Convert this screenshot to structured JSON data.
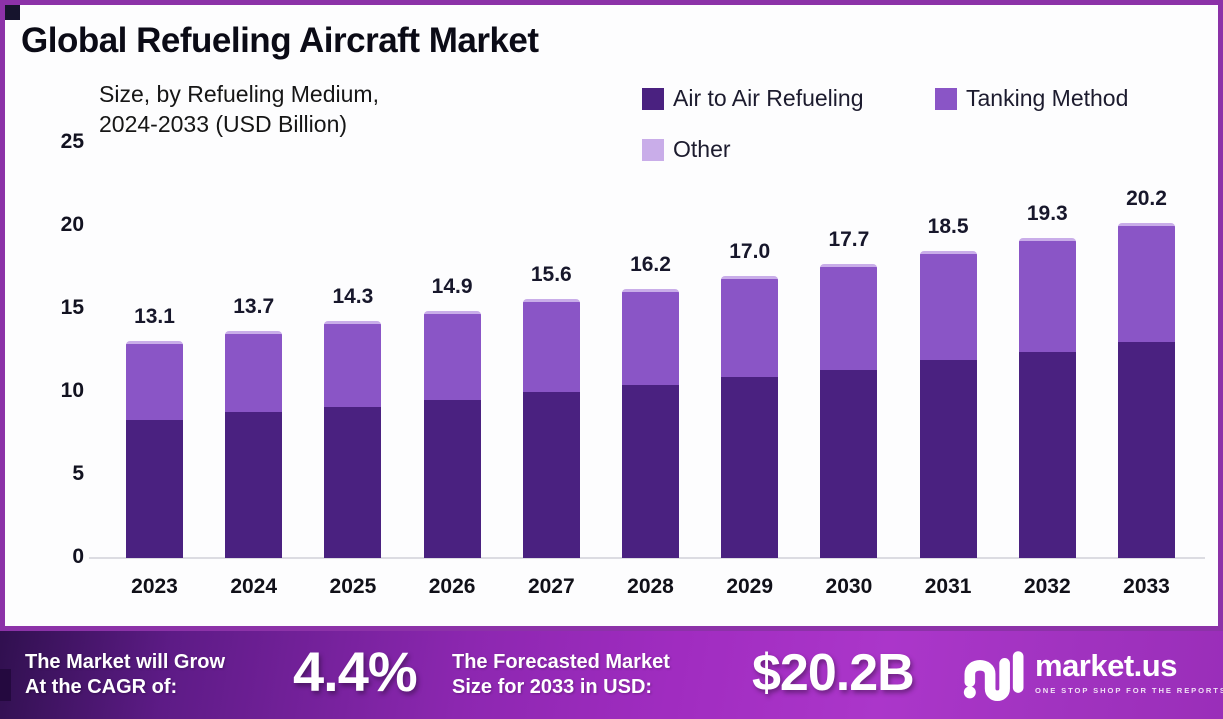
{
  "title": "Global Refueling Aircraft Market",
  "subtitle": {
    "line1": "Size, by Refueling Medium,",
    "line2": "2024-2033 (USD Billion)"
  },
  "chart_data": {
    "type": "bar",
    "stacked": true,
    "title": "Global Refueling Aircraft Market — Size, by Refueling Medium, 2024-2033 (USD Billion)",
    "categories": [
      "2023",
      "2024",
      "2025",
      "2026",
      "2027",
      "2028",
      "2029",
      "2030",
      "2031",
      "2032",
      "2033"
    ],
    "series": [
      {
        "name": "Air to Air Refueling",
        "color": "#4a2180",
        "values": [
          8.3,
          8.8,
          9.1,
          9.5,
          10.0,
          10.4,
          10.9,
          11.3,
          11.9,
          12.4,
          13.0
        ]
      },
      {
        "name": "Tanking Method",
        "color": "#8a55c6",
        "values": [
          4.6,
          4.7,
          5.0,
          5.2,
          5.4,
          5.6,
          5.9,
          6.2,
          6.4,
          6.7,
          7.0
        ]
      },
      {
        "name": "Other",
        "color": "#c9ade9",
        "values": [
          0.2,
          0.2,
          0.2,
          0.2,
          0.2,
          0.2,
          0.2,
          0.2,
          0.2,
          0.2,
          0.2
        ]
      }
    ],
    "totals": [
      13.1,
      13.7,
      14.3,
      14.9,
      15.6,
      16.2,
      17.0,
      17.7,
      18.5,
      19.3,
      20.2
    ],
    "total_labels": [
      "13.1",
      "13.7",
      "14.3",
      "14.9",
      "15.6",
      "16.2",
      "17.0",
      "17.7",
      "18.5",
      "19.3",
      "20.2"
    ],
    "xlabel": "",
    "ylabel": "USD Billion",
    "ylim": [
      0,
      25
    ],
    "y_ticks": [
      0,
      5,
      10,
      15,
      20,
      25
    ],
    "grid": false,
    "legend_position": "top-right"
  },
  "banner": {
    "cagr_label_line1": "The Market will Grow",
    "cagr_label_line2": "At the CAGR of:",
    "cagr_value": "4.4%",
    "forecast_label_line1": "The Forecasted Market",
    "forecast_label_line2": "Size for 2033 in USD:",
    "forecast_value": "$20.2B",
    "brand_name": "market.us",
    "brand_tagline": "ONE STOP SHOP FOR THE REPORTS"
  },
  "colors": {
    "frame_border": "#8c32a8",
    "corner_accent": "#16142d",
    "banner_gradient_start": "#30104f",
    "banner_gradient_end": "#9a2eb9",
    "axis_line": "#dcdce2",
    "text_dark": "#17172b"
  }
}
